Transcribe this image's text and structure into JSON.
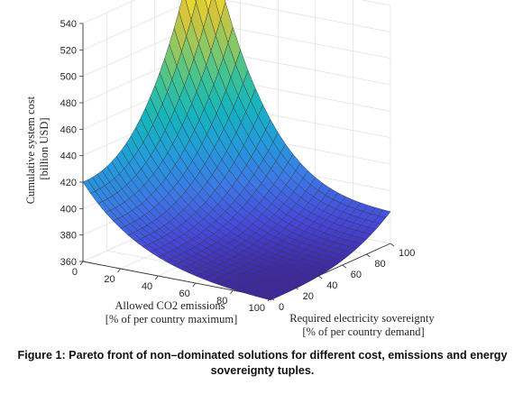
{
  "chart_data": {
    "type": "surface",
    "title": "",
    "x": {
      "label_line1": "Allowed CO2 emissions",
      "label_line2": "[% of per country maximum]",
      "range": [
        0,
        100
      ],
      "ticks": [
        0,
        20,
        40,
        60,
        80,
        100
      ]
    },
    "y": {
      "label_line1": "Required electricity sovereignty",
      "label_line2": "[% of per country demand]",
      "range": [
        0,
        100
      ],
      "ticks": [
        0,
        20,
        40,
        60,
        80,
        100
      ]
    },
    "z": {
      "label_line1": "Cumulative system cost",
      "label_line2": "[billion USD]",
      "range": [
        360,
        540
      ],
      "ticks": [
        360,
        380,
        400,
        420,
        440,
        460,
        480,
        500,
        520,
        540
      ]
    },
    "corner_values": {
      "co2_0_sov_0": 420,
      "co2_100_sov_0": 358,
      "co2_0_sov_100": 545,
      "co2_100_sov_100": 376
    },
    "grid": true,
    "colormap": "parula"
  },
  "caption": "Figure 1: Pareto front of non–dominated solutions for different cost, emissions and energy sovereignty tuples."
}
